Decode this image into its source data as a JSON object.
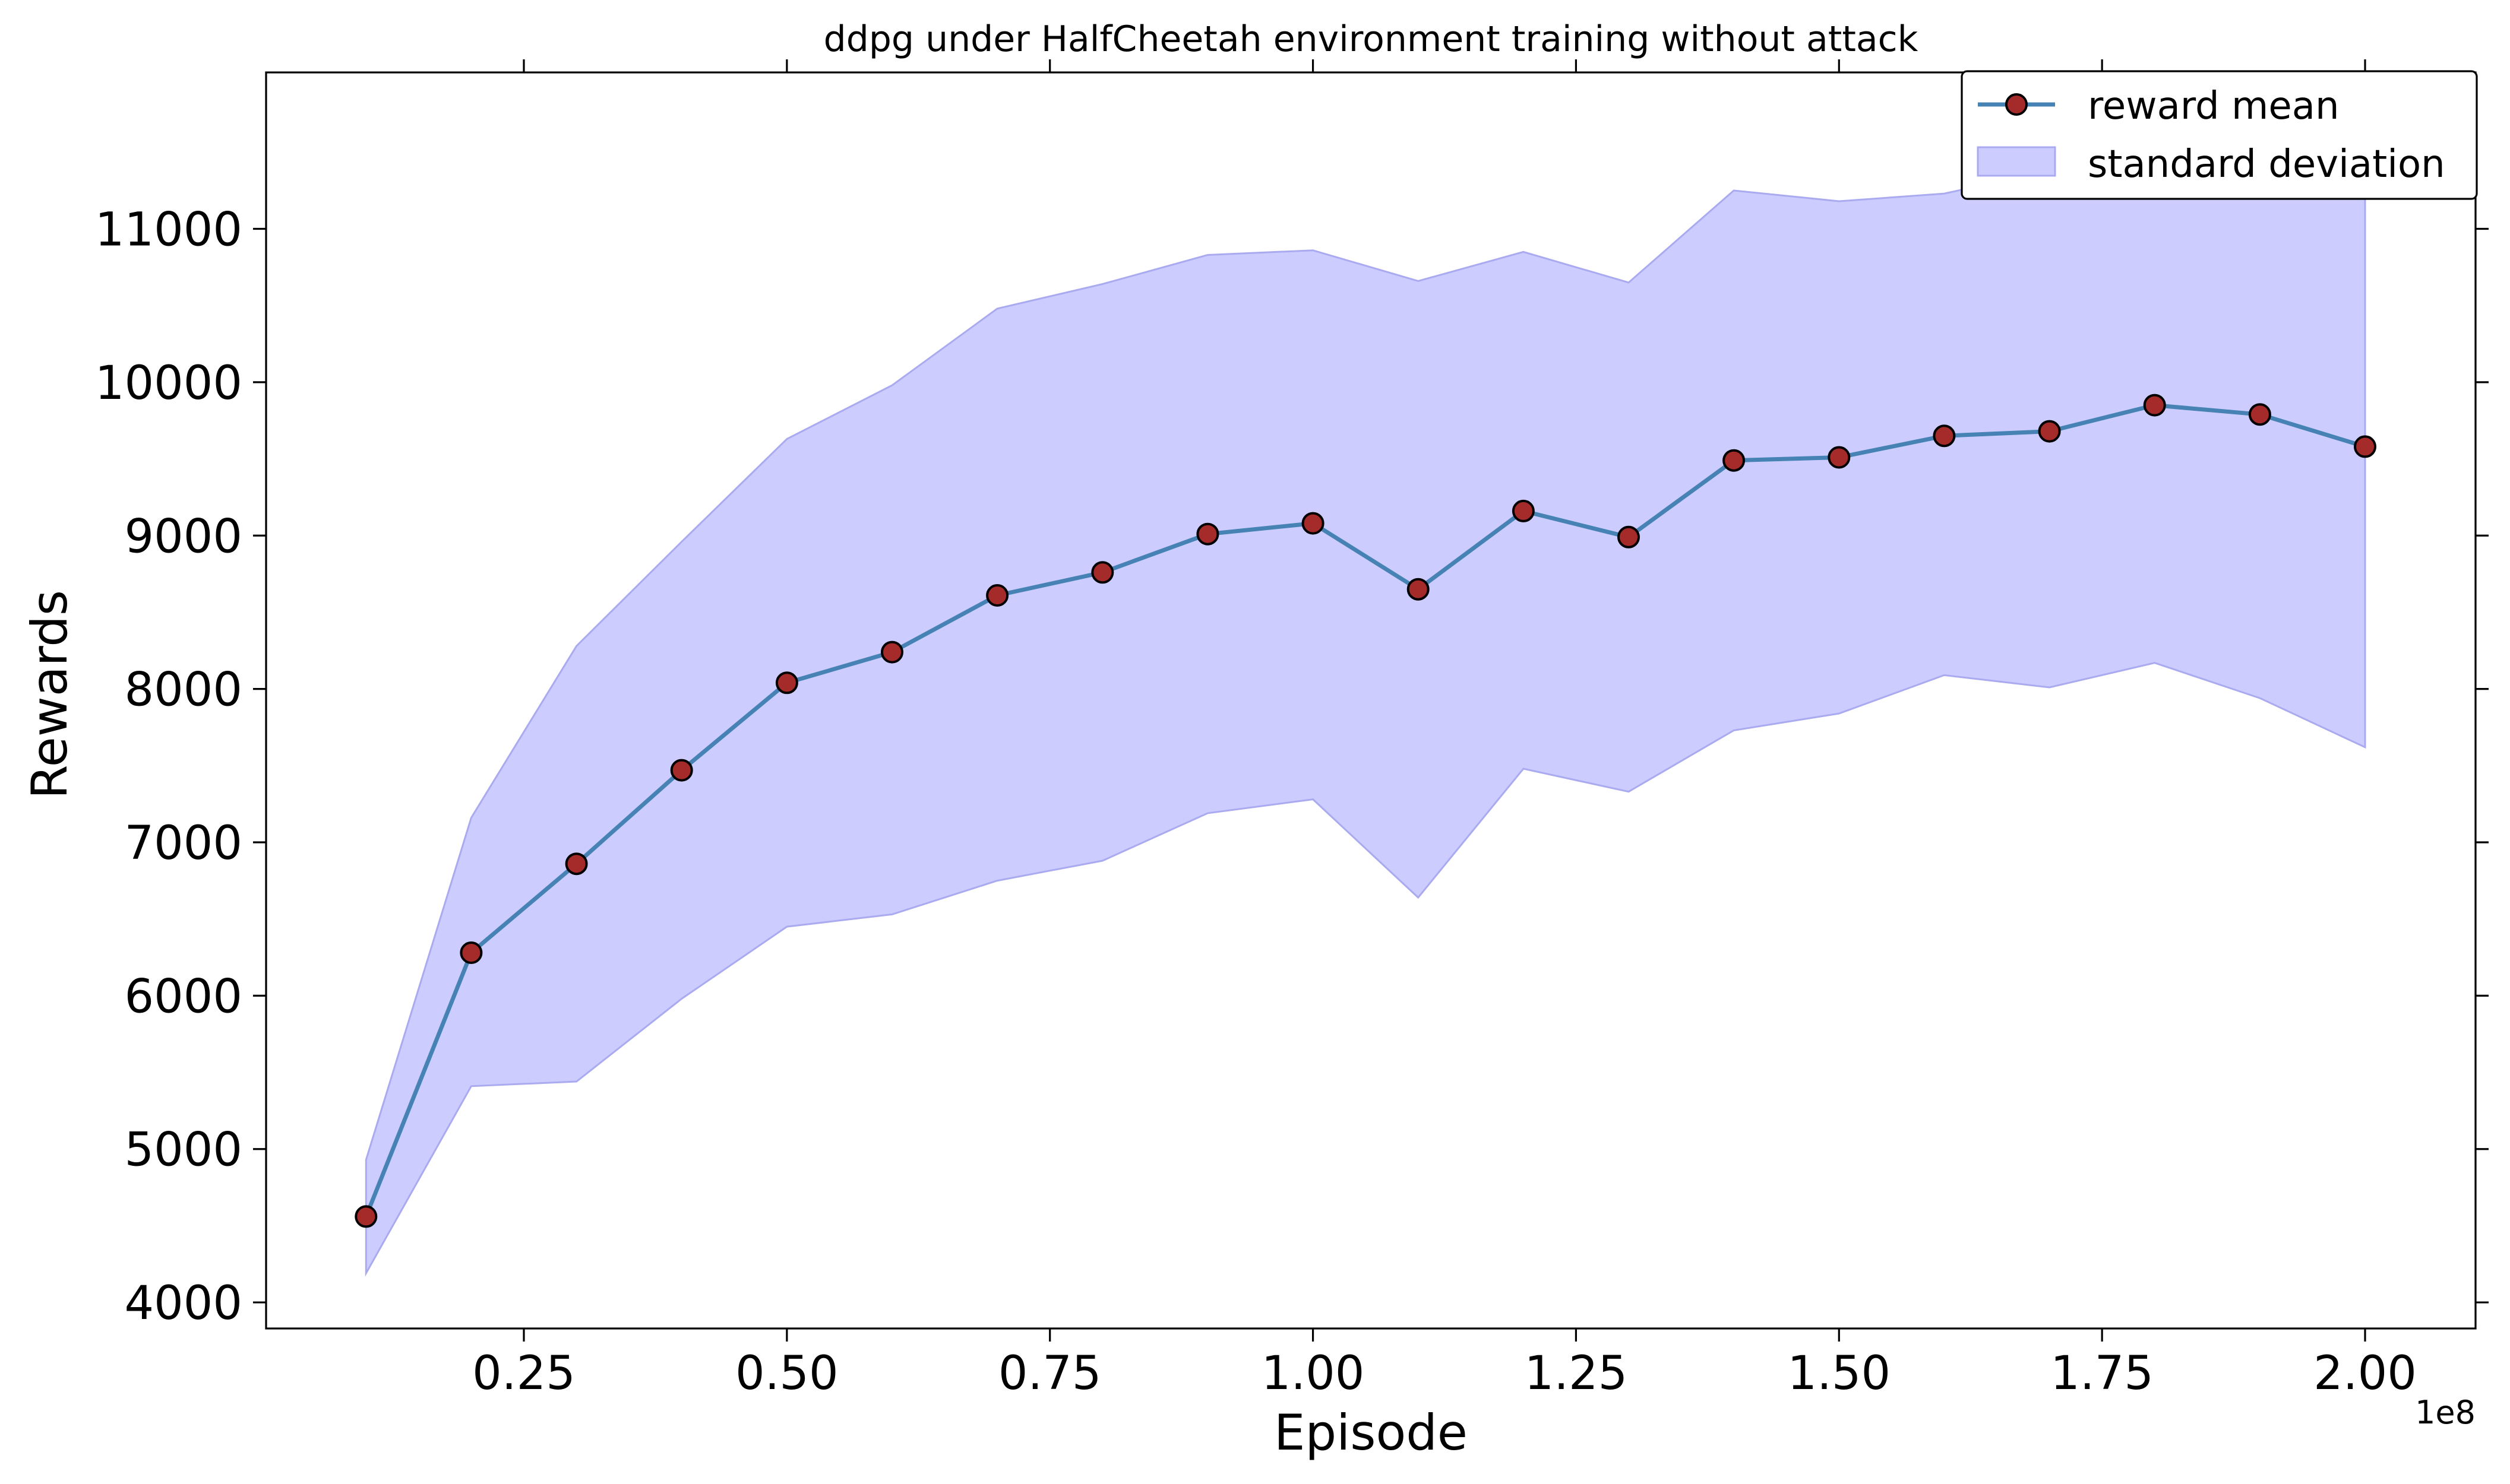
{
  "chart_data": {
    "type": "line",
    "title": "ddpg under HalfCheetah environment training without attack",
    "xlabel": "Episode",
    "ylabel": "Rewards",
    "x_offset_label": "1e8",
    "xlim": [
      0.005,
      2.105
    ],
    "ylim": [
      3830,
      12020
    ],
    "x_ticks": [
      0.25,
      0.5,
      0.75,
      1.0,
      1.25,
      1.5,
      1.75,
      2.0
    ],
    "x_tick_labels": [
      "0.25",
      "0.50",
      "0.75",
      "1.00",
      "1.25",
      "1.50",
      "1.75",
      "2.00"
    ],
    "y_ticks": [
      4000,
      5000,
      6000,
      7000,
      8000,
      9000,
      10000,
      11000
    ],
    "y_tick_labels": [
      "4000",
      "5000",
      "6000",
      "7000",
      "8000",
      "9000",
      "10000",
      "11000"
    ],
    "grid": false,
    "legend_position": "top-right",
    "x": [
      0.1,
      0.2,
      0.3,
      0.4,
      0.5,
      0.6,
      0.7,
      0.8,
      0.9,
      1.0,
      1.1,
      1.2,
      1.3,
      1.4,
      1.5,
      1.6,
      1.7,
      1.8,
      1.9,
      2.0
    ],
    "series": [
      {
        "name": "reward mean",
        "kind": "line-with-markers",
        "color": "#4682b4",
        "marker_color": "#a52a2a",
        "values": [
          4560,
          6280,
          6860,
          7470,
          8040,
          8240,
          8610,
          8760,
          9010,
          9080,
          8650,
          9160,
          8990,
          9490,
          9510,
          9650,
          9680,
          9850,
          9790,
          9580
        ]
      },
      {
        "name": "standard deviation",
        "kind": "band",
        "color": "#ccccff",
        "lower": [
          4190,
          5410,
          5440,
          5980,
          6450,
          6530,
          6750,
          6880,
          7190,
          7280,
          6640,
          7480,
          7330,
          7730,
          7840,
          8090,
          8010,
          8170,
          7940,
          7620
        ],
        "upper": [
          4930,
          7160,
          8280,
          8960,
          9630,
          9980,
          10480,
          10640,
          10830,
          10860,
          10660,
          10850,
          10650,
          11250,
          11180,
          11230,
          11380,
          11530,
          11630,
          11540
        ]
      }
    ]
  }
}
